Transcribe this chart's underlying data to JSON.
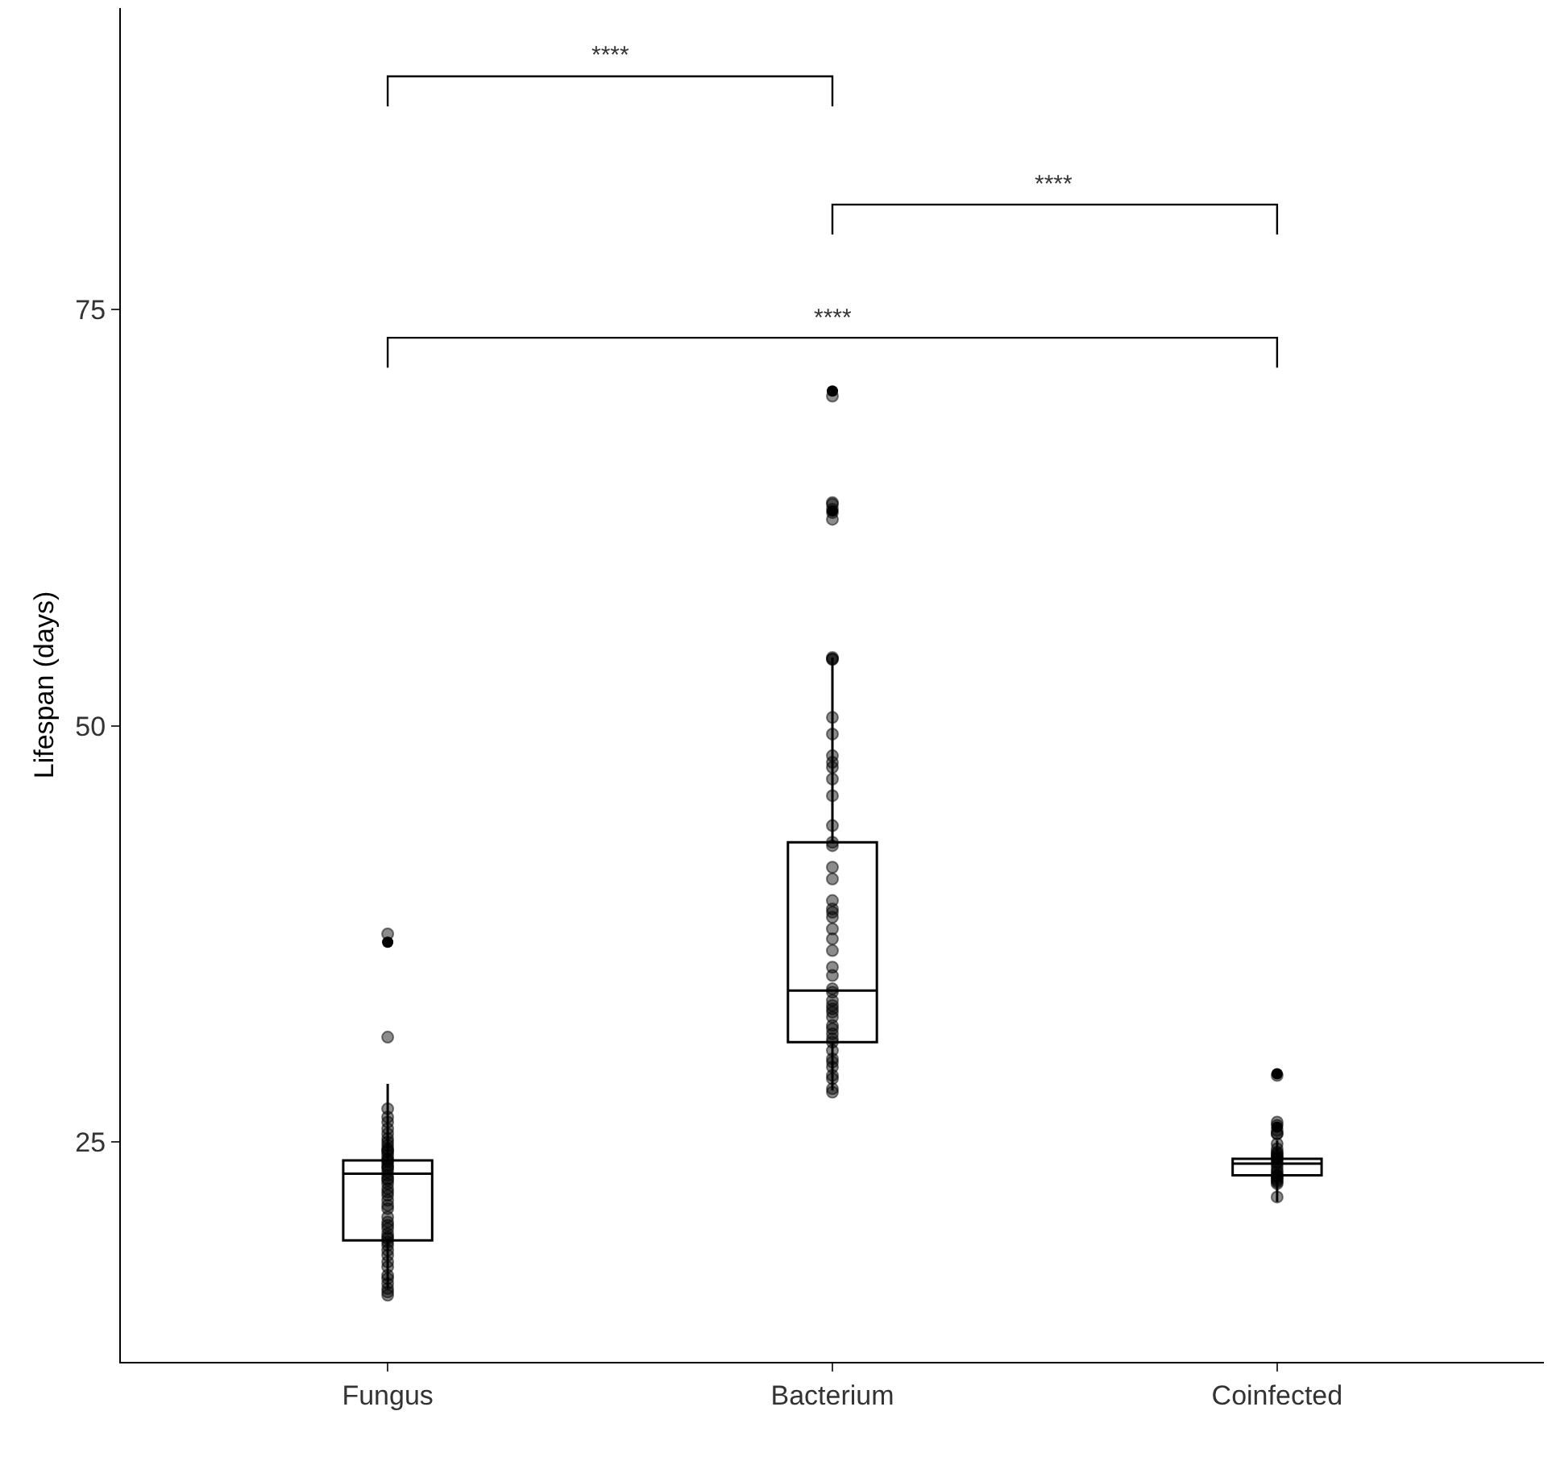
{
  "chart_data": {
    "type": "box",
    "categories": [
      "Fungus",
      "Bacterium",
      "Coinfected"
    ],
    "ylabel": "Lifespan (days)",
    "ylim": [
      11.8,
      93.1
    ],
    "yticks": [
      25,
      50,
      75
    ],
    "marker": "circle",
    "annotations": [
      "****",
      "****",
      "****"
    ],
    "series": [
      {
        "color": "#000000",
        "boxes": [
          {
            "low": 16.2,
            "q1": 19.1,
            "median": 23.1,
            "q3": 23.9,
            "high": 28.5,
            "outliers": [
              37.0
            ]
          },
          {
            "low": 28.1,
            "q1": 31.0,
            "median": 34.1,
            "q3": 43.0,
            "high": 54.1,
            "outliers": [
              62.9,
              70.1
            ]
          },
          {
            "low": 21.4,
            "q1": 23.0,
            "median": 23.7,
            "q3": 24.0,
            "high": 25.1,
            "outliers": [
              25.9,
              29.1
            ]
          }
        ]
      },
      {
        "type": "scatter",
        "color": "#000000",
        "x": [
          "Fungus",
          "Fungus",
          "Fungus",
          "Fungus",
          "Fungus",
          "Fungus",
          "Fungus",
          "Fungus",
          "Fungus",
          "Fungus",
          "Fungus",
          "Fungus",
          "Fungus",
          "Fungus",
          "Fungus",
          "Fungus",
          "Fungus",
          "Fungus",
          "Fungus",
          "Fungus",
          "Fungus",
          "Fungus",
          "Fungus",
          "Fungus",
          "Fungus",
          "Fungus",
          "Fungus",
          "Fungus",
          "Fungus",
          "Fungus",
          "Fungus",
          "Fungus",
          "Fungus",
          "Fungus",
          "Fungus",
          "Fungus",
          "Fungus",
          "Fungus",
          "Fungus",
          "Fungus",
          "Fungus",
          "Fungus",
          "Fungus",
          "Fungus",
          "Fungus",
          "Fungus",
          "Fungus",
          "Fungus",
          "Fungus",
          "Fungus",
          "Bacterium",
          "Bacterium",
          "Bacterium",
          "Bacterium",
          "Bacterium",
          "Bacterium",
          "Bacterium",
          "Bacterium",
          "Bacterium",
          "Bacterium",
          "Bacterium",
          "Bacterium",
          "Bacterium",
          "Bacterium",
          "Bacterium",
          "Bacterium",
          "Bacterium",
          "Bacterium",
          "Bacterium",
          "Bacterium",
          "Bacterium",
          "Bacterium",
          "Bacterium",
          "Bacterium",
          "Bacterium",
          "Bacterium",
          "Bacterium",
          "Bacterium",
          "Bacterium",
          "Bacterium",
          "Bacterium",
          "Bacterium",
          "Bacterium",
          "Bacterium",
          "Bacterium",
          "Bacterium",
          "Bacterium",
          "Bacterium",
          "Bacterium",
          "Bacterium",
          "Bacterium",
          "Bacterium",
          "Bacterium",
          "Bacterium",
          "Bacterium",
          "Bacterium",
          "Bacterium",
          "Bacterium",
          "Bacterium",
          "Bacterium",
          "Coinfected",
          "Coinfected",
          "Coinfected",
          "Coinfected",
          "Coinfected",
          "Coinfected",
          "Coinfected",
          "Coinfected",
          "Coinfected",
          "Coinfected",
          "Coinfected",
          "Coinfected",
          "Coinfected",
          "Coinfected",
          "Coinfected",
          "Coinfected",
          "Coinfected",
          "Coinfected",
          "Coinfected",
          "Coinfected",
          "Coinfected",
          "Coinfected",
          "Coinfected",
          "Coinfected",
          "Coinfected",
          "Coinfected",
          "Coinfected"
        ],
        "values": [
          37.5,
          31.3,
          27.0,
          26.5,
          26.2,
          25.8,
          25.5,
          25.2,
          25.0,
          24.8,
          24.6,
          24.4,
          24.2,
          24.0,
          23.8,
          23.6,
          23.4,
          23.2,
          23.0,
          22.8,
          22.5,
          22.2,
          22.0,
          21.8,
          21.5,
          21.2,
          21.0,
          20.5,
          20.2,
          20.0,
          19.8,
          19.5,
          19.3,
          19.0,
          18.8,
          18.5,
          18.2,
          17.8,
          17.5,
          17.0,
          16.8,
          16.5,
          16.2,
          16.0,
          15.8,
          24.5,
          23.5,
          23.9,
          22.7,
          19.2,
          69.8,
          63.3,
          62.4,
          62.8,
          63.4,
          63.0,
          54.0,
          54.1,
          54.0,
          49.5,
          48.2,
          47.8,
          47.5,
          45.8,
          44.0,
          43.0,
          42.8,
          41.5,
          40.8,
          39.5,
          39.0,
          38.8,
          38.5,
          37.8,
          37.2,
          36.5,
          35.5,
          34.2,
          34.0,
          33.5,
          33.2,
          33.0,
          32.8,
          32.5,
          31.8,
          31.5,
          31.2,
          31.0,
          30.5,
          30.0,
          29.8,
          29.5,
          29.0,
          28.8,
          28.2,
          28.0,
          32.0,
          35.0,
          46.8,
          50.5,
          26.2,
          26.0,
          25.7,
          25.5,
          25.5,
          24.9,
          24.6,
          24.4,
          24.3,
          24.2,
          24.1,
          24.0,
          24.0,
          23.8,
          23.7,
          23.5,
          23.3,
          23.2,
          23.0,
          23.0,
          22.9,
          22.8,
          22.7,
          22.6,
          22.5,
          21.7,
          29.0
        ]
      }
    ]
  }
}
